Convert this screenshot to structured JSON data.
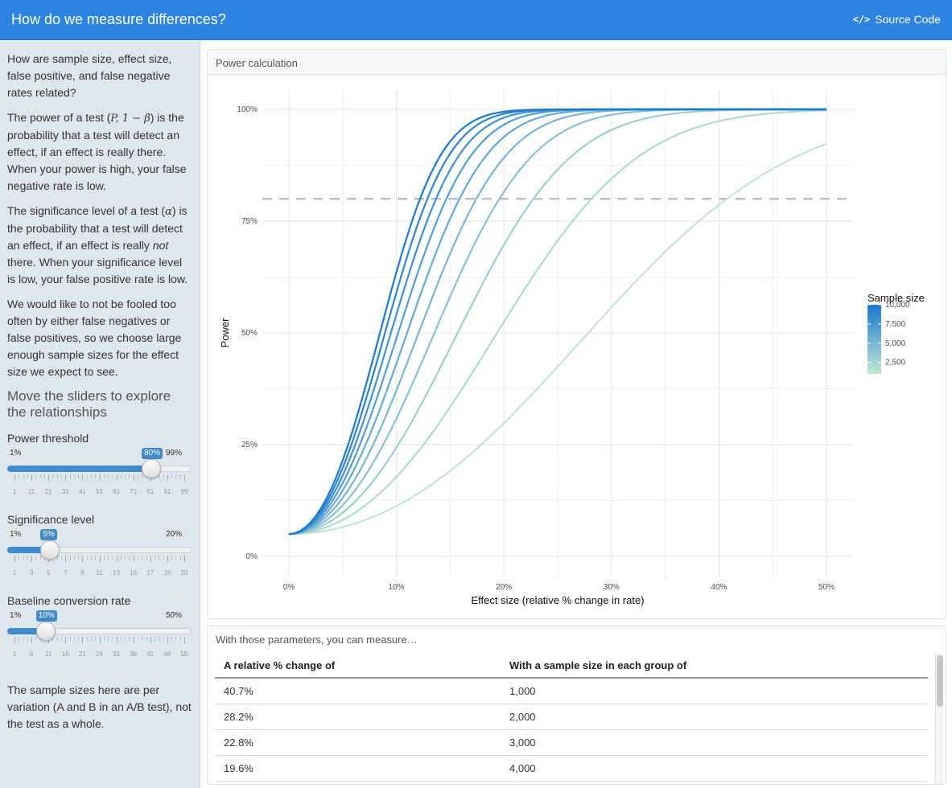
{
  "header": {
    "title": "How do we measure differences?",
    "source_code_label": "Source Code",
    "source_icon": "</>",
    "bg_color": "#2c83e0"
  },
  "sidebar": {
    "intro": "How are sample size, effect size, false positive, and false negative rates related?",
    "power_p1": "The power of a test (",
    "power_math": "P, 1 − β",
    "power_p2": ") is the probability that a test will detect an effect, if an effect is really there. When your power is high, your false negative rate is low.",
    "sig_p1": "The significance level of a test (",
    "sig_math": "α",
    "sig_p2": ") is the probability that a test will detect an effect, if an effect is really ",
    "sig_not": "not",
    "sig_p3": " there. When your significance level is low, your false positive rate is low.",
    "fooled": "We would like to not be fooled too often by either false negatives or false positives, so we choose large enough sample sizes for the effect size we expect to see.",
    "explore_heading": "Move the sliders to explore the relationships",
    "footer_note": "The sample sizes here are per variation (A and B in an A/B test), not the test as a whole."
  },
  "sliders": [
    {
      "id": "power",
      "label": "Power threshold",
      "min_label": "1%",
      "max_label": "99%",
      "value_label": "80%",
      "min": 1,
      "max": 99,
      "value": 80,
      "grid_labels": [
        "1",
        "11",
        "21",
        "31",
        "41",
        "51",
        "61",
        "71",
        "81",
        "91",
        "99"
      ]
    },
    {
      "id": "sig",
      "label": "Significance level",
      "min_label": "1%",
      "max_label": "20%",
      "value_label": "5%",
      "min": 1,
      "max": 20,
      "value": 5,
      "grid_labels": [
        "1",
        "3",
        "5",
        "7",
        "9",
        "11",
        "13",
        "15",
        "17",
        "19",
        "20"
      ]
    },
    {
      "id": "base",
      "label": "Baseline conversion rate",
      "min_label": "1%",
      "max_label": "50%",
      "value_label": "10%",
      "min": 1,
      "max": 50,
      "value": 10,
      "grid_labels": [
        "1",
        "6",
        "11",
        "16",
        "21",
        "26",
        "31",
        "36",
        "41",
        "46",
        "50"
      ]
    }
  ],
  "chart_card": {
    "header": "Power calculation"
  },
  "chart_data": {
    "type": "line",
    "xlabel": "Effect size (relative % change in rate)",
    "ylabel": "Power",
    "x_ticks": [
      "0%",
      "10%",
      "20%",
      "30%",
      "40%",
      "50%"
    ],
    "y_ticks": [
      "0%",
      "25%",
      "50%",
      "75%",
      "100%"
    ],
    "xlim": [
      0,
      50
    ],
    "ylim": [
      0,
      100
    ],
    "threshold": 80,
    "baseline_rate": 0.1,
    "alpha": 0.05,
    "sample_sizes": [
      1000,
      2000,
      3000,
      4000,
      5000,
      6000,
      7000,
      8000,
      9000,
      10000
    ],
    "legend": {
      "title": "Sample size",
      "labels": [
        "10,000",
        "7,500",
        "5,000",
        "2,500"
      ],
      "position": "right",
      "color_low": "#c2e6d2",
      "color_high": "#1a78d0"
    }
  },
  "table": {
    "header": "With those parameters, you can measure…",
    "columns": [
      "A relative % change of",
      "With a sample size in each group of"
    ],
    "rows": [
      [
        "40.7%",
        "1,000"
      ],
      [
        "28.2%",
        "2,000"
      ],
      [
        "22.8%",
        "3,000"
      ],
      [
        "19.6%",
        "4,000"
      ]
    ]
  }
}
